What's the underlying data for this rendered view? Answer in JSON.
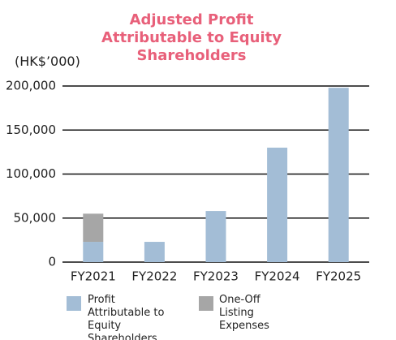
{
  "chart_data": {
    "type": "stacked_bar",
    "title": "Adjusted Profit Attributable to Equity Shareholders",
    "y_label": "(HK$’000)",
    "categories": [
      "FY2021",
      "FY2022",
      "FY2023",
      "FY2024",
      "FY2025"
    ],
    "series": [
      {
        "name": "Profit Attributable to Equity Shareholders",
        "color": "#a3bdd6",
        "values": [
          23000,
          23000,
          58000,
          130000,
          198000
        ]
      },
      {
        "name": "One-Off Listing Expenses",
        "color": "#a6a6a6",
        "values": [
          32000,
          null,
          null,
          null,
          null
        ]
      }
    ],
    "ylim": [
      0,
      200000
    ],
    "yticks": [
      0,
      {
        "value": 50000,
        "label": "50,000"
      },
      {
        "value": 100000,
        "label": "100,000"
      },
      {
        "value": 150000,
        "label": "150,000"
      },
      {
        "value": 200000,
        "label": "200,000"
      }
    ],
    "grid": true
  }
}
